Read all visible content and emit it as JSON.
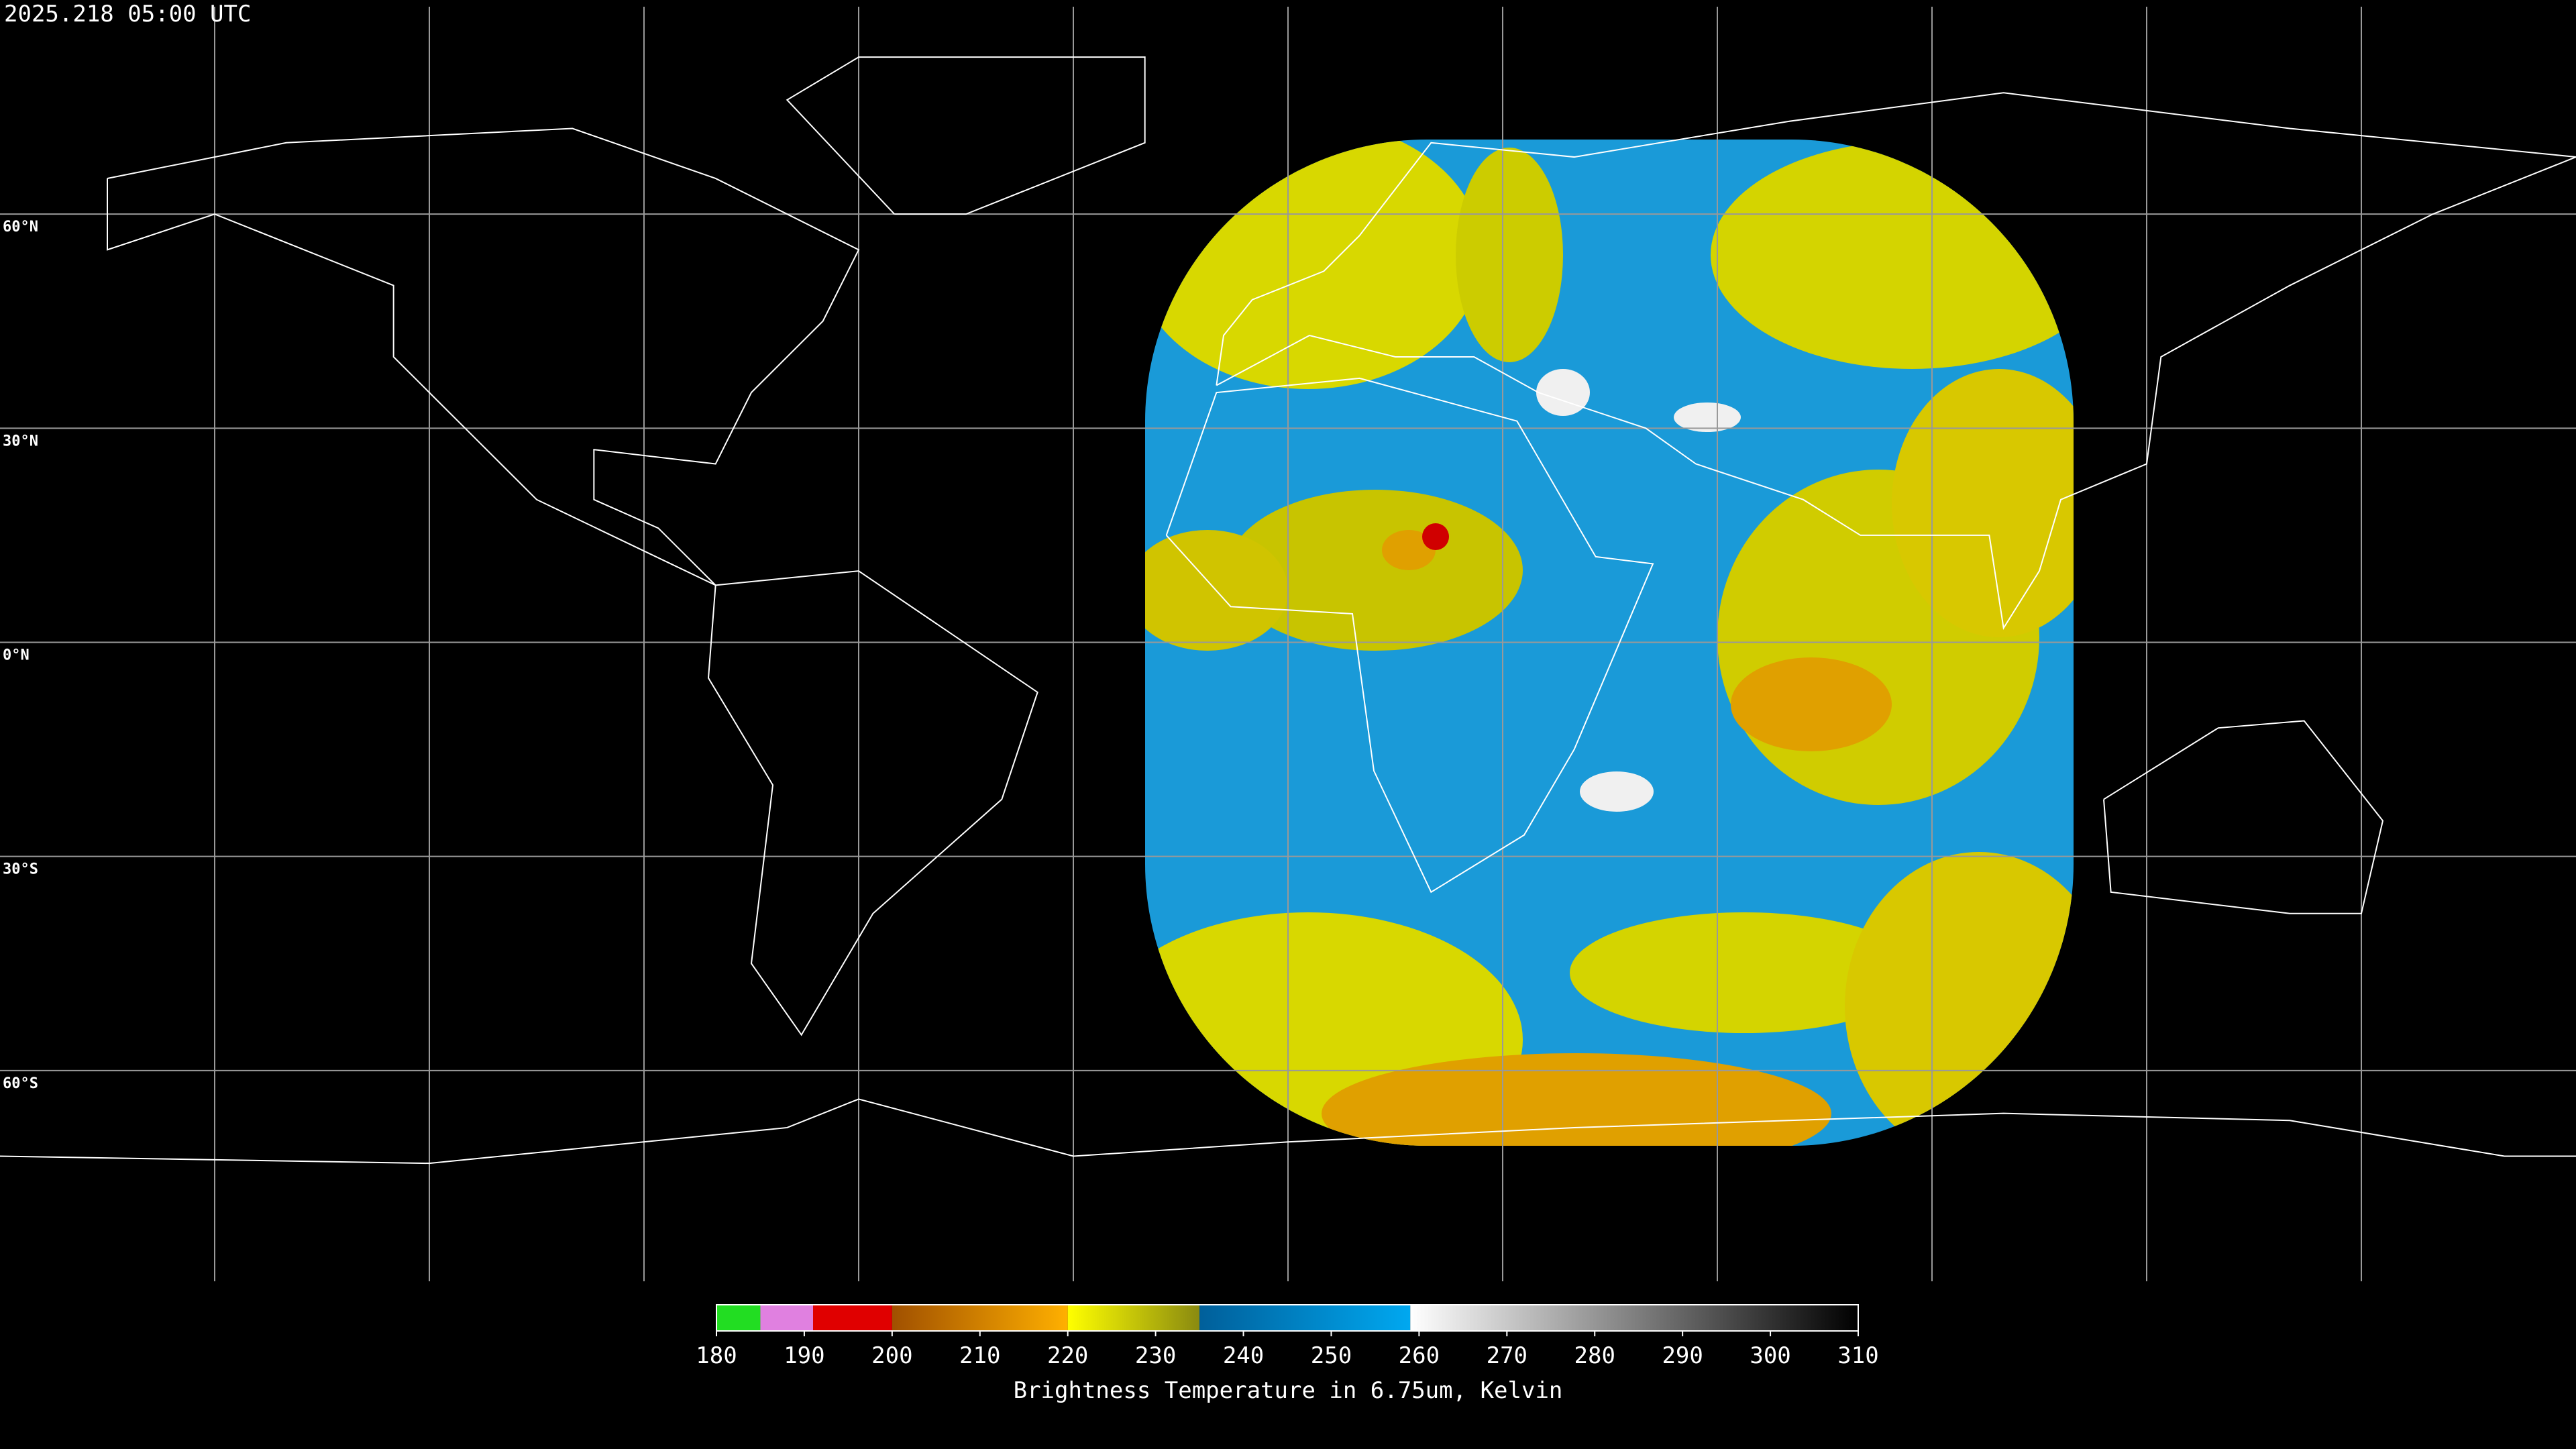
{
  "title": "2025.218 05:00 UTC",
  "lat_labels": [
    "60°N",
    "30°N",
    "0°N",
    "30°S",
    "60°S"
  ],
  "colorbar": {
    "range": [
      180,
      310
    ],
    "ticks": [
      180,
      190,
      200,
      210,
      220,
      230,
      240,
      250,
      260,
      270,
      280,
      290,
      300,
      310
    ],
    "label": "Brightness Temperature in 6.75um, Kelvin",
    "segments": [
      {
        "from": 180,
        "to": 185,
        "colors": [
          "#22dd22",
          "#22dd22"
        ]
      },
      {
        "from": 185,
        "to": 191,
        "colors": [
          "#e080e0",
          "#e080e0"
        ]
      },
      {
        "from": 191,
        "to": 200,
        "colors": [
          "#e00000",
          "#e00000"
        ]
      },
      {
        "from": 200,
        "to": 220,
        "colors": [
          "#a05000",
          "#ffb000"
        ]
      },
      {
        "from": 220,
        "to": 235,
        "colors": [
          "#ffff00",
          "#8a8a10"
        ]
      },
      {
        "from": 235,
        "to": 259,
        "colors": [
          "#005f9a",
          "#00a8f0"
        ]
      },
      {
        "from": 259,
        "to": 310,
        "colors": [
          "#ffffff",
          "#000000"
        ]
      }
    ]
  }
}
